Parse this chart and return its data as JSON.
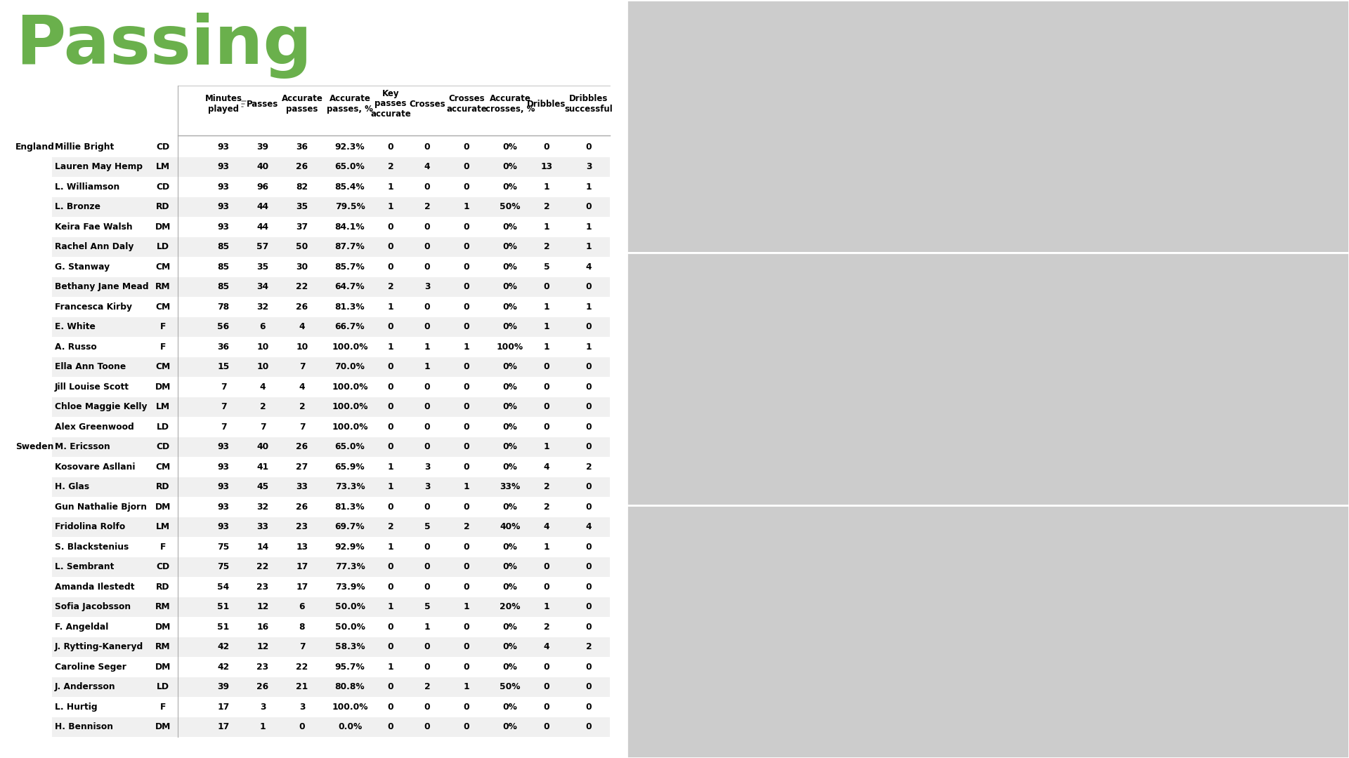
{
  "title": "Passing",
  "title_color": "#6ab04c",
  "bg_color": "#ffffff",
  "rows": [
    [
      "England",
      "Millie Bright",
      "CD",
      "93",
      "39",
      "36",
      "92.3%",
      "0",
      "0",
      "0",
      "0%",
      "0",
      "0"
    ],
    [
      "",
      "Lauren May Hemp",
      "LM",
      "93",
      "40",
      "26",
      "65.0%",
      "2",
      "4",
      "0",
      "0%",
      "13",
      "3"
    ],
    [
      "",
      "L. Williamson",
      "CD",
      "93",
      "96",
      "82",
      "85.4%",
      "1",
      "0",
      "0",
      "0%",
      "1",
      "1"
    ],
    [
      "",
      "L. Bronze",
      "RD",
      "93",
      "44",
      "35",
      "79.5%",
      "1",
      "2",
      "1",
      "50%",
      "2",
      "0"
    ],
    [
      "",
      "Keira Fae Walsh",
      "DM",
      "93",
      "44",
      "37",
      "84.1%",
      "0",
      "0",
      "0",
      "0%",
      "1",
      "1"
    ],
    [
      "",
      "Rachel Ann Daly",
      "LD",
      "85",
      "57",
      "50",
      "87.7%",
      "0",
      "0",
      "0",
      "0%",
      "2",
      "1"
    ],
    [
      "",
      "G. Stanway",
      "CM",
      "85",
      "35",
      "30",
      "85.7%",
      "0",
      "0",
      "0",
      "0%",
      "5",
      "4"
    ],
    [
      "",
      "Bethany Jane Mead",
      "RM",
      "85",
      "34",
      "22",
      "64.7%",
      "2",
      "3",
      "0",
      "0%",
      "0",
      "0"
    ],
    [
      "",
      "Francesca Kirby",
      "CM",
      "78",
      "32",
      "26",
      "81.3%",
      "1",
      "0",
      "0",
      "0%",
      "1",
      "1"
    ],
    [
      "",
      "E. White",
      "F",
      "56",
      "6",
      "4",
      "66.7%",
      "0",
      "0",
      "0",
      "0%",
      "1",
      "0"
    ],
    [
      "",
      "A. Russo",
      "F",
      "36",
      "10",
      "10",
      "100.0%",
      "1",
      "1",
      "1",
      "100%",
      "1",
      "1"
    ],
    [
      "",
      "Ella Ann Toone",
      "CM",
      "15",
      "10",
      "7",
      "70.0%",
      "0",
      "1",
      "0",
      "0%",
      "0",
      "0"
    ],
    [
      "",
      "Jill Louise Scott",
      "DM",
      "7",
      "4",
      "4",
      "100.0%",
      "0",
      "0",
      "0",
      "0%",
      "0",
      "0"
    ],
    [
      "",
      "Chloe Maggie Kelly",
      "LM",
      "7",
      "2",
      "2",
      "100.0%",
      "0",
      "0",
      "0",
      "0%",
      "0",
      "0"
    ],
    [
      "",
      "Alex Greenwood",
      "LD",
      "7",
      "7",
      "7",
      "100.0%",
      "0",
      "0",
      "0",
      "0%",
      "0",
      "0"
    ],
    [
      "Sweden",
      "M. Ericsson",
      "CD",
      "93",
      "40",
      "26",
      "65.0%",
      "0",
      "0",
      "0",
      "0%",
      "1",
      "0"
    ],
    [
      "",
      "Kosovare Asllani",
      "CM",
      "93",
      "41",
      "27",
      "65.9%",
      "1",
      "3",
      "0",
      "0%",
      "4",
      "2"
    ],
    [
      "",
      "H. Glas",
      "RD",
      "93",
      "45",
      "33",
      "73.3%",
      "1",
      "3",
      "1",
      "33%",
      "2",
      "0"
    ],
    [
      "",
      "Gun Nathalie Bjorn",
      "DM",
      "93",
      "32",
      "26",
      "81.3%",
      "0",
      "0",
      "0",
      "0%",
      "2",
      "0"
    ],
    [
      "",
      "Fridolina Rolfo",
      "LM",
      "93",
      "33",
      "23",
      "69.7%",
      "2",
      "5",
      "2",
      "40%",
      "4",
      "4"
    ],
    [
      "",
      "S. Blackstenius",
      "F",
      "75",
      "14",
      "13",
      "92.9%",
      "1",
      "0",
      "0",
      "0%",
      "1",
      "0"
    ],
    [
      "",
      "L. Sembrant",
      "CD",
      "75",
      "22",
      "17",
      "77.3%",
      "0",
      "0",
      "0",
      "0%",
      "0",
      "0"
    ],
    [
      "",
      "Amanda Ilestedt",
      "RD",
      "54",
      "23",
      "17",
      "73.9%",
      "0",
      "0",
      "0",
      "0%",
      "0",
      "0"
    ],
    [
      "",
      "Sofia Jacobsson",
      "RM",
      "51",
      "12",
      "6",
      "50.0%",
      "1",
      "5",
      "1",
      "20%",
      "1",
      "0"
    ],
    [
      "",
      "F. Angeldal",
      "DM",
      "51",
      "16",
      "8",
      "50.0%",
      "0",
      "1",
      "0",
      "0%",
      "2",
      "0"
    ],
    [
      "",
      "J. Rytting-Kaneryd",
      "RM",
      "42",
      "12",
      "7",
      "58.3%",
      "0",
      "0",
      "0",
      "0%",
      "4",
      "2"
    ],
    [
      "",
      "Caroline Seger",
      "DM",
      "42",
      "23",
      "22",
      "95.7%",
      "1",
      "0",
      "0",
      "0%",
      "0",
      "0"
    ],
    [
      "",
      "J. Andersson",
      "LD",
      "39",
      "26",
      "21",
      "80.8%",
      "0",
      "2",
      "1",
      "50%",
      "0",
      "0"
    ],
    [
      "",
      "L. Hurtig",
      "F",
      "17",
      "3",
      "3",
      "100.0%",
      "0",
      "0",
      "0",
      "0%",
      "0",
      "0"
    ],
    [
      "",
      "H. Bennison",
      "DM",
      "17",
      "1",
      "0",
      "0.0%",
      "0",
      "0",
      "0",
      "0%",
      "0",
      "0"
    ]
  ],
  "col_headers": [
    {
      "label": "Minutes\nplayed",
      "filter": true
    },
    {
      "label": "Passes",
      "filter": false
    },
    {
      "label": "Accurate\npasses",
      "filter": false
    },
    {
      "label": "Accurate\npasses, %",
      "filter": false
    },
    {
      "label": "Key\npasses\naccurate",
      "filter": false
    },
    {
      "label": "Crosses",
      "filter": false
    },
    {
      "label": "Crosses\naccurate",
      "filter": false
    },
    {
      "label": "Accurate\ncrosses, %",
      "filter": false
    },
    {
      "label": "Dribbles",
      "filter": false
    },
    {
      "label": "Dribbles\nsuccessful",
      "filter": false
    }
  ],
  "row_bg_odd": "#f0f0f0",
  "row_bg_even": "#ffffff",
  "separator_color": "#aaaaaa",
  "text_color": "#000000"
}
